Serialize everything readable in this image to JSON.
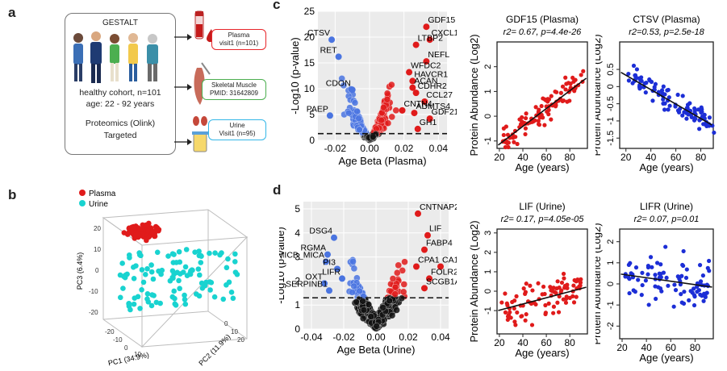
{
  "panel_labels": {
    "a": "a",
    "b": "b",
    "c": "c",
    "d": "d"
  },
  "panel_a": {
    "title": "GESTALT",
    "cohort": "healthy cohort, n=101",
    "age": "age: 22 - 92 years",
    "method_line1": "Proteomics (Olink)",
    "method_line2": "Targeted",
    "plasma_l1": "Plasma",
    "plasma_l2": "visit1 (n=101)",
    "muscle_l1": "Skeletal Muscle",
    "muscle_l2": "PMID: 31642809",
    "urine_l1": "Urine",
    "urine_l2": "Visit1 (n=95)",
    "colors": {
      "plasma": "#e8262b",
      "muscle": "#4caf50",
      "urine": "#35b7e8"
    }
  },
  "panel_b": {
    "legend": [
      {
        "label": "Plasma",
        "color": "#e01b1b"
      },
      {
        "label": "Urine",
        "color": "#19d3d0"
      }
    ],
    "pc1": "PC1 (34.9%)",
    "pc2": "PC2 (11.9%)",
    "pc3": "PC3 (6.4%)",
    "zticks": [
      "20",
      "10",
      "0",
      "-10",
      "-20"
    ],
    "xticks": [
      "-20",
      "-10",
      "0",
      "10",
      "20",
      "30"
    ],
    "yticks": [
      "0",
      "10",
      "20"
    ]
  },
  "chart_data": [
    {
      "id": "volcano_plasma",
      "type": "scatter",
      "xlabel": "Age Beta (Plasma)",
      "ylabel": "-Log10 (p-value)",
      "xlim": [
        -0.03,
        0.045
      ],
      "ylim": [
        0,
        25
      ],
      "xticks": [
        "-0.02",
        "0.00",
        "0.02",
        "0.04"
      ],
      "yticks": [
        "0",
        "5",
        "10",
        "15",
        "20",
        "25"
      ],
      "threshold": 1.3,
      "labels": [
        {
          "label": "GDF15",
          "x": 0.033,
          "y": 22
        },
        {
          "label": "CXCL17",
          "x": 0.035,
          "y": 19.5
        },
        {
          "label": "LTBP2",
          "x": 0.027,
          "y": 18.5
        },
        {
          "label": "NEFL",
          "x": 0.033,
          "y": 15.3
        },
        {
          "label": "WFDC2",
          "x": 0.023,
          "y": 13.2
        },
        {
          "label": "HAVCR1",
          "x": 0.025,
          "y": 11.5
        },
        {
          "label": "ACAN",
          "x": 0.025,
          "y": 10.2
        },
        {
          "label": "CDHR2",
          "x": 0.027,
          "y": 9.2
        },
        {
          "label": "CCL27",
          "x": 0.032,
          "y": 7.5
        },
        {
          "label": "CNTN4",
          "x": 0.019,
          "y": 5.8
        },
        {
          "label": "ADMTS4",
          "x": 0.026,
          "y": 5.3
        },
        {
          "label": "GDF21",
          "x": 0.035,
          "y": 4.2
        },
        {
          "label": "GH1",
          "x": 0.028,
          "y": 2.2
        },
        {
          "label": "CTSV",
          "x": -0.022,
          "y": 19.5
        },
        {
          "label": "RET",
          "x": -0.018,
          "y": 16.2
        },
        {
          "label": "CDON",
          "x": -0.01,
          "y": 9.8
        },
        {
          "label": "PAEP",
          "x": -0.023,
          "y": 4.8
        }
      ]
    },
    {
      "id": "gdf15_plasma",
      "type": "scatter",
      "title": "GDF15 (Plasma)",
      "stats": "r2= 0.67, p=4.4e-26",
      "xlabel": "Age (years)",
      "ylabel": "Protein Abundance (Log2)",
      "xlim": [
        18,
        95
      ],
      "ylim": [
        -1.3,
        3
      ],
      "xticks": [
        "20",
        "40",
        "60",
        "80"
      ],
      "yticks": [
        "-1",
        "0",
        "1",
        "2"
      ],
      "color": "#e01b1b",
      "fit": {
        "slope": 0.036,
        "intercept": -1.85
      }
    },
    {
      "id": "ctsv_plasma",
      "type": "scatter",
      "title": "CTSV (Plasma)",
      "stats": "r2=0.53, p=2.5e-18",
      "xlabel": "Age (years)",
      "ylabel": "Protein Abundance (Log2)",
      "xlim": [
        15,
        90
      ],
      "ylim": [
        -1.8,
        1.3
      ],
      "xticks": [
        "20",
        "40",
        "60",
        "80"
      ],
      "yticks": [
        "-1.5",
        "-1",
        "-0.5",
        "0",
        "0.5"
      ],
      "color": "#1c2ed6",
      "fit": {
        "slope": -0.021,
        "intercept": 0.75
      }
    },
    {
      "id": "volcano_urine",
      "type": "scatter",
      "xlabel": "Age Beta (Urine)",
      "ylabel": "-Log10 (p-value)",
      "xlim": [
        -0.045,
        0.045
      ],
      "ylim": [
        0,
        5.3
      ],
      "xticks": [
        "-0.04",
        "-0.02",
        "0.00",
        "0.02",
        "0.04"
      ],
      "yticks": [
        "0",
        "1",
        "2",
        "3",
        "4",
        "5"
      ],
      "threshold": 1.3,
      "labels": [
        {
          "label": "CNTNAP2",
          "x": 0.026,
          "y": 4.8
        },
        {
          "label": "LIF",
          "x": 0.032,
          "y": 3.9
        },
        {
          "label": "FABP4",
          "x": 0.03,
          "y": 3.3
        },
        {
          "label": "CPA1",
          "x": 0.025,
          "y": 2.6
        },
        {
          "label": "CA1",
          "x": 0.04,
          "y": 2.6
        },
        {
          "label": "FOLR2",
          "x": 0.033,
          "y": 2.1
        },
        {
          "label": "SCGB1A1",
          "x": 0.03,
          "y": 1.7
        },
        {
          "label": "DSG4",
          "x": -0.026,
          "y": 3.8
        },
        {
          "label": "RGMA",
          "x": -0.03,
          "y": 3.1
        },
        {
          "label": "MICB_MICA",
          "x": -0.031,
          "y": 2.8
        },
        {
          "label": "PI3",
          "x": -0.024,
          "y": 2.5
        },
        {
          "label": "LIFR",
          "x": -0.021,
          "y": 2.1
        },
        {
          "label": "OXT",
          "x": -0.032,
          "y": 1.9
        },
        {
          "label": "SERPINB1",
          "x": -0.029,
          "y": 1.6
        }
      ]
    },
    {
      "id": "lif_urine",
      "type": "scatter",
      "title": "LIF (Urine)",
      "stats": "r2= 0.17, p=4.05e-05",
      "xlabel": "Age (years)",
      "ylabel": "Protein Abundance (Log2)",
      "xlim": [
        18,
        95
      ],
      "ylim": [
        -2.2,
        3.2
      ],
      "xticks": [
        "20",
        "40",
        "60",
        "80"
      ],
      "yticks": [
        "-1",
        "0",
        "1",
        "2",
        "3"
      ],
      "color": "#e01b1b",
      "fit": {
        "slope": 0.016,
        "intercept": -1.3
      }
    },
    {
      "id": "lifr_urine",
      "type": "scatter",
      "title": "LIFR (Urine)",
      "stats": "r2= 0.07, p=0.01",
      "xlabel": "Age (years)",
      "ylabel": "Protein Abundance (Log2)",
      "xlim": [
        18,
        95
      ],
      "ylim": [
        -2.6,
        2.6
      ],
      "xticks": [
        "20",
        "40",
        "60",
        "80"
      ],
      "yticks": [
        "-2",
        "-1",
        "0",
        "1",
        "2"
      ],
      "color": "#1c2ed6",
      "fit": {
        "slope": -0.0082,
        "intercept": 0.62
      }
    }
  ]
}
